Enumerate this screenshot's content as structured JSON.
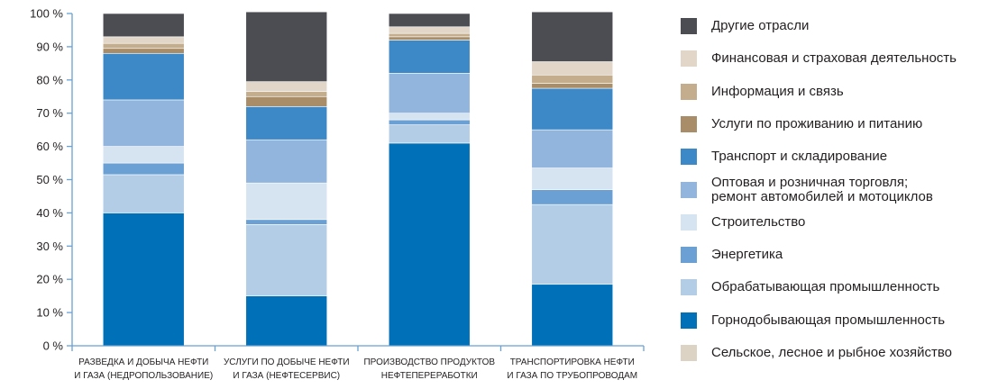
{
  "chart_data": {
    "type": "bar",
    "stacked": true,
    "ylim": [
      0,
      100
    ],
    "yticks": [
      "0 %",
      "10 %",
      "20 %",
      "30 %",
      "40 %",
      "50 %",
      "60 %",
      "70 %",
      "80 %",
      "90 %",
      "100 %"
    ],
    "categories": [
      [
        "Разведка и добыча нефти",
        "и газа (недропользование)"
      ],
      [
        "Услуги по добыче нефти",
        "и газа (нефтесервис)"
      ],
      [
        "Производство продуктов",
        "нефтепереработки"
      ],
      [
        "Транспортировка нефти",
        "и газа по трубопроводам"
      ]
    ],
    "legend_position": "right",
    "series": [
      {
        "name": "Сельское, лесное и рыбное хозяйство",
        "color": "#ddd3c4",
        "values": [
          0,
          0,
          0,
          0
        ]
      },
      {
        "name": "Горнодобывающая промышленность",
        "color": "#0070b8",
        "values": [
          40,
          15,
          61,
          18.5
        ]
      },
      {
        "name": "Обрабатывающая промышленность",
        "color": "#b3cde7",
        "values": [
          11.5,
          21.5,
          5.5,
          24
        ]
      },
      {
        "name": "Энергетика",
        "color": "#6aa0d3",
        "values": [
          3.5,
          1.5,
          1.5,
          4.5
        ]
      },
      {
        "name": "Строительство",
        "color": "#d6e4f2",
        "values": [
          5,
          11,
          2,
          6.5
        ]
      },
      {
        "name": "Оптовая и розничная торговля;\nремонт автомобилей и мотоциклов",
        "color": "#91b5dc",
        "values": [
          14,
          13,
          12,
          11.5
        ]
      },
      {
        "name": "Транспорт и складирование",
        "color": "#3d88c6",
        "values": [
          14,
          10,
          10,
          12.5
        ]
      },
      {
        "name": "Услуги по проживанию и питанию",
        "color": "#a98d68",
        "values": [
          1.5,
          3,
          1,
          1.5
        ]
      },
      {
        "name": "Информация и связь",
        "color": "#c4ad8c",
        "values": [
          1.5,
          1.5,
          1,
          2.5
        ]
      },
      {
        "name": "Финансовая и страховая деятельность",
        "color": "#e1d6c8",
        "values": [
          2,
          3,
          2,
          4
        ]
      },
      {
        "name": "Другие отрасли",
        "color": "#4c4d52",
        "values": [
          7,
          21,
          4,
          15
        ]
      }
    ],
    "legend_order": [
      10,
      9,
      8,
      7,
      6,
      5,
      4,
      3,
      2,
      1,
      0
    ]
  }
}
